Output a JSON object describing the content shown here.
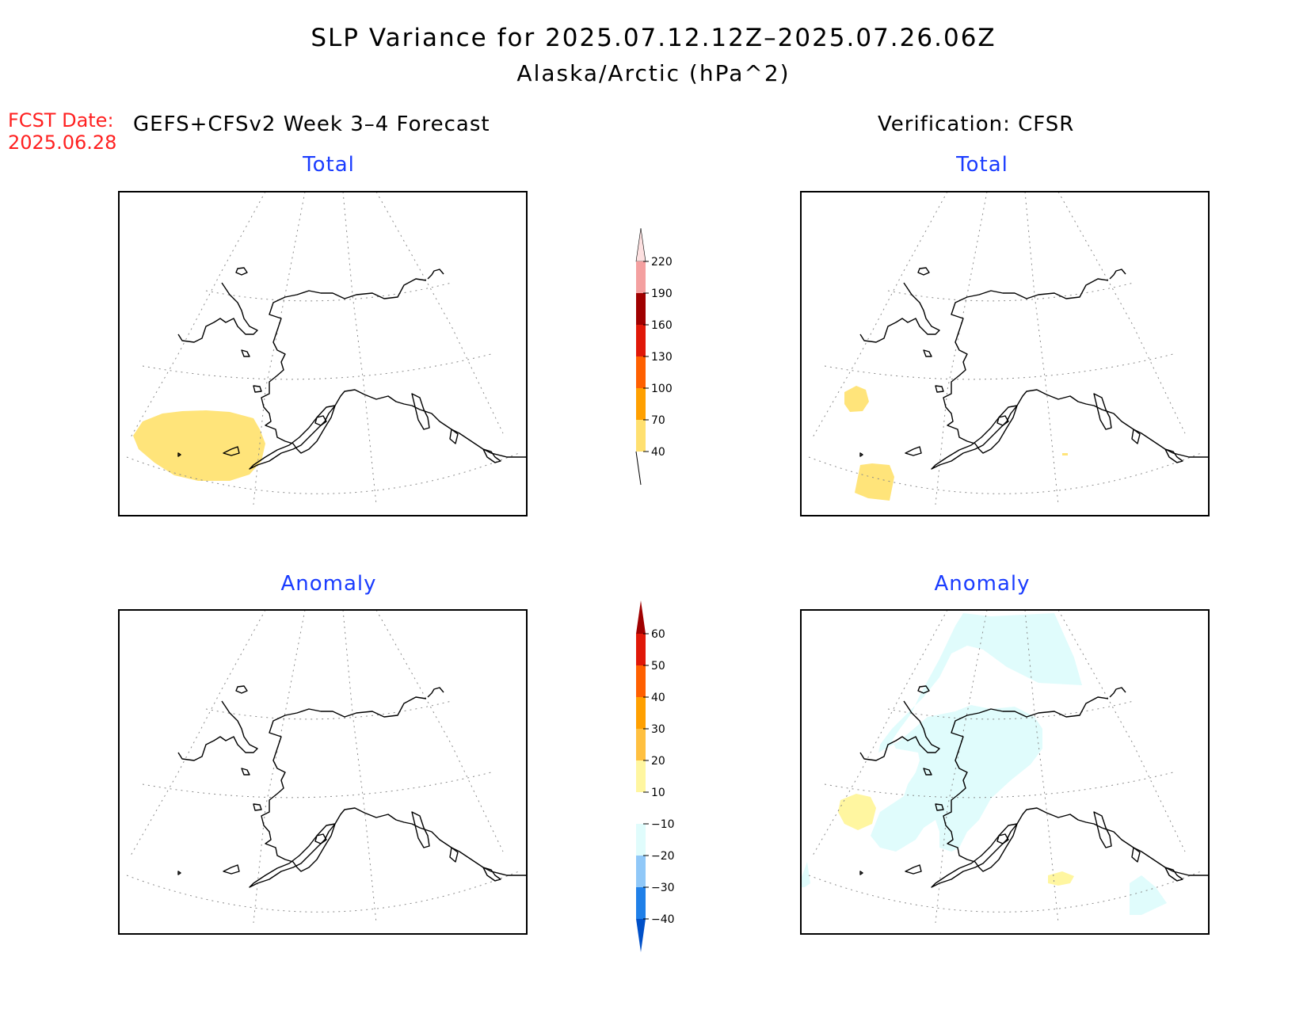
{
  "title": {
    "line1": "SLP Variance for 2025.07.12.12Z–2025.07.26.06Z",
    "line2": "Alaska/Arctic (hPa^2)"
  },
  "forecast_date": {
    "label": "FCST Date:",
    "value": "2025.06.28"
  },
  "left_header": "GEFS+CFSv2 Week 3–4 Forecast",
  "right_header": "Verification: CFSR",
  "panels": [
    {
      "id": "forecast-total",
      "title": "Total",
      "shaded_regions": [
        "40-70 over Bering Sea / Aleutians"
      ]
    },
    {
      "id": "verification-total",
      "title": "Total",
      "shaded_regions": [
        "40-70 west Bering Sea",
        "40-70 near Aleutians"
      ]
    },
    {
      "id": "forecast-anomaly",
      "title": "Anomaly",
      "shaded_regions": []
    },
    {
      "id": "verification-anomaly",
      "title": "Anomaly",
      "shaded_regions": [
        "-20 to -10 Arctic Ocean / Alaska interior",
        "10-20 west Bering Sea",
        "10-20 Gulf of Alaska"
      ]
    }
  ],
  "colorbars": {
    "total": {
      "labels": [
        "220",
        "190",
        "160",
        "130",
        "100",
        "70",
        "40"
      ],
      "colors": [
        "#fde0e0",
        "#f4a0a0",
        "#a00000",
        "#e01808",
        "#ff6000",
        "#ffa000",
        "#ffe070"
      ]
    },
    "anomaly": {
      "labels": [
        "60",
        "50",
        "40",
        "30",
        "20",
        "10",
        "−10",
        "−20",
        "−30",
        "−40"
      ],
      "colors": [
        "#a00000",
        "#e01808",
        "#ff6000",
        "#ffa000",
        "#ffc040",
        "#fff6a0",
        "#ffffff",
        "#e0fcfc",
        "#90c8f8",
        "#2080e8",
        "#0050c8"
      ]
    }
  },
  "shading_colors": {
    "total_40_70": "#ffe47a",
    "anom_pos_10_20": "#fff6a0",
    "anom_neg_10_20": "#e0fcfc"
  }
}
